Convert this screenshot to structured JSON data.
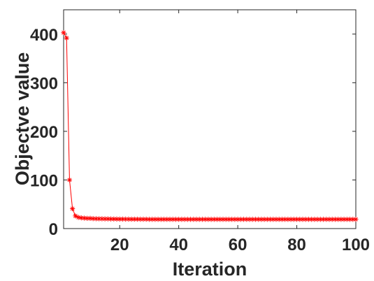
{
  "chart_data": {
    "type": "line",
    "title": "",
    "xlabel": "Iteration",
    "ylabel": "Objectve value",
    "xlim": [
      1,
      100
    ],
    "ylim": [
      0,
      450
    ],
    "xticks": [
      20,
      40,
      60,
      80,
      100
    ],
    "yticks": [
      0,
      100,
      200,
      300,
      400
    ],
    "grid": false,
    "legend": "none",
    "series": [
      {
        "color": "#ff0000",
        "marker": "asterisk",
        "x": [
          1,
          2,
          3,
          4,
          5,
          6,
          7,
          8,
          9,
          10,
          11,
          12,
          13,
          14,
          15,
          16,
          17,
          18,
          19,
          20,
          21,
          22,
          23,
          24,
          25,
          26,
          27,
          28,
          29,
          30,
          31,
          32,
          33,
          34,
          35,
          36,
          37,
          38,
          39,
          40,
          41,
          42,
          43,
          44,
          45,
          46,
          47,
          48,
          49,
          50,
          51,
          52,
          53,
          54,
          55,
          56,
          57,
          58,
          59,
          60,
          61,
          62,
          63,
          64,
          65,
          66,
          67,
          68,
          69,
          70,
          71,
          72,
          73,
          74,
          75,
          76,
          77,
          78,
          79,
          80,
          81,
          82,
          83,
          84,
          85,
          86,
          87,
          88,
          89,
          90,
          91,
          92,
          93,
          94,
          95,
          96,
          97,
          98,
          99,
          100
        ],
        "y": [
          403,
          392,
          100,
          41,
          26,
          23,
          22,
          21.5,
          21,
          21,
          20.5,
          20.3,
          20.2,
          20.1,
          20,
          19.9,
          19.8,
          19.7,
          19.6,
          19.5,
          19.5,
          19.4,
          19.4,
          19.3,
          19.3,
          19.3,
          19.2,
          19.2,
          19.2,
          19.1,
          19.1,
          19.1,
          19,
          19,
          19,
          19,
          19,
          19,
          19,
          19,
          19,
          19,
          19,
          19,
          19,
          19,
          19,
          19,
          19,
          19,
          19,
          19,
          19,
          19,
          19,
          19,
          19,
          19,
          19,
          19,
          19,
          19,
          19,
          19,
          19,
          19,
          19,
          19,
          19,
          19,
          19,
          19,
          19,
          19,
          19,
          19,
          19,
          19,
          19,
          19,
          19,
          19,
          19,
          19,
          19,
          19,
          19,
          19,
          19,
          19,
          19,
          19,
          19,
          19,
          19,
          19,
          19,
          19,
          19,
          19
        ]
      }
    ]
  }
}
